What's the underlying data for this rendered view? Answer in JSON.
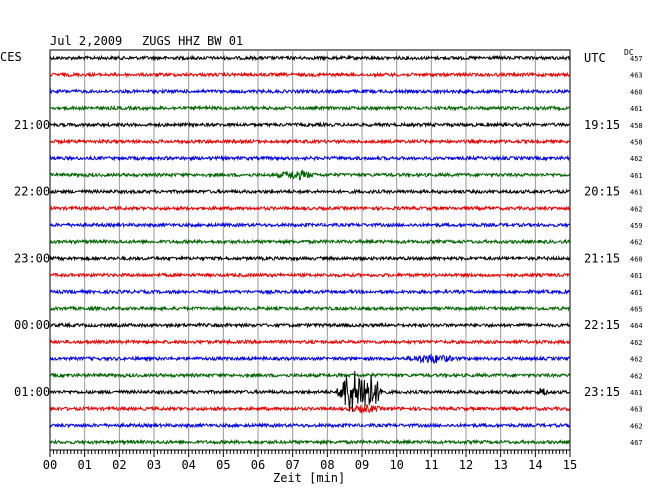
{
  "header": {
    "date": "Jul 2,2009",
    "station": "ZUGS HHZ BW 01",
    "left_tz": "CES",
    "right_tz": "UTC",
    "dc_label": "DC"
  },
  "chart_data": {
    "type": "line",
    "xlabel": "Zeit [min]",
    "xlim": [
      0,
      15
    ],
    "x_ticks": [
      "00",
      "01",
      "02",
      "03",
      "04",
      "05",
      "06",
      "07",
      "08",
      "09",
      "10",
      "11",
      "12",
      "13",
      "14",
      "15"
    ],
    "left_time_labels": [
      {
        "trace": 4,
        "text": "21:00"
      },
      {
        "trace": 8,
        "text": "22:00"
      },
      {
        "trace": 12,
        "text": "23:00"
      },
      {
        "trace": 16,
        "text": "00:00"
      },
      {
        "trace": 20,
        "text": "01:00"
      }
    ],
    "right_time_labels": [
      {
        "trace": 0,
        "text": "UTC"
      },
      {
        "trace": 4,
        "text": "19:15"
      },
      {
        "trace": 8,
        "text": "20:15"
      },
      {
        "trace": 12,
        "text": "21:15"
      },
      {
        "trace": 16,
        "text": "22:15"
      },
      {
        "trace": 20,
        "text": "23:15"
      }
    ],
    "trace_colors": [
      "#000000",
      "#e60000",
      "#0000e6",
      "#006400"
    ],
    "dc_offsets": [
      457,
      463,
      460,
      461,
      458,
      458,
      462,
      461,
      461,
      462,
      459,
      462,
      460,
      461,
      461,
      465,
      464,
      462,
      462,
      462,
      461,
      463,
      462,
      467
    ],
    "events": [
      {
        "trace": 7,
        "minute": 7.1,
        "amplitude": 0.45,
        "width": 0.6
      },
      {
        "trace": 18,
        "minute": 11.0,
        "amplitude": 0.45,
        "width": 0.8
      },
      {
        "trace": 20,
        "minute": 8.6,
        "amplitude": 2.2,
        "width": 0.35
      },
      {
        "trace": 20,
        "minute": 9.1,
        "amplitude": 2.5,
        "width": 0.6
      },
      {
        "trace": 20,
        "minute": 14.2,
        "amplitude": 0.55,
        "width": 0.15
      },
      {
        "trace": 21,
        "minute": 9.1,
        "amplitude": 0.35,
        "width": 0.5
      }
    ],
    "grid": true
  }
}
